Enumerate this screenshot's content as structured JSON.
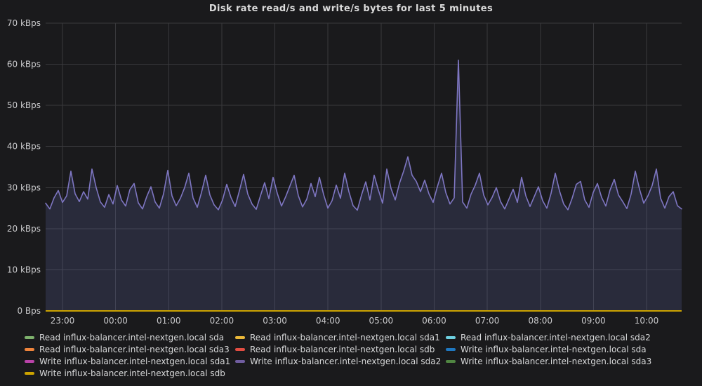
{
  "panel": {
    "title": "Disk rate read/s and write/s bytes for last 5 minutes"
  },
  "colors": {
    "background": "#1a1a1c",
    "grid": "#39393c",
    "tick_text": "#c9c9cb",
    "main_line": "#7e76c2",
    "main_fill": "rgba(105,115,185,0.20)",
    "zero_line": "#cca300"
  },
  "chart_data": {
    "type": "line",
    "title": "Disk rate read/s and write/s bytes for last 5 minutes",
    "xlabel": "",
    "ylabel": "",
    "ylim": [
      0,
      70
    ],
    "grid": true,
    "legend_position": "bottom",
    "y_tick_values": [
      0,
      10,
      20,
      30,
      40,
      50,
      60,
      70
    ],
    "y_tick_labels": [
      "0 Bps",
      "10 kBps",
      "20 kBps",
      "30 kBps",
      "40 kBps",
      "50 kBps",
      "60 kBps",
      "70 kBps"
    ],
    "x_ticks": [
      "23:00",
      "00:00",
      "01:00",
      "02:00",
      "03:00",
      "04:00",
      "05:00",
      "06:00",
      "07:00",
      "08:00",
      "09:00",
      "10:00"
    ],
    "series": [
      {
        "name": "Read influx-balancer.intel-nextgen.local sda",
        "color": "#7EB26D",
        "visible": false
      },
      {
        "name": "Read influx-balancer.intel-nextgen.local sda1",
        "color": "#EAB839",
        "visible": false
      },
      {
        "name": "Read influx-balancer.intel-nextgen.local sda2",
        "color": "#6ED0E0",
        "visible": false
      },
      {
        "name": "Read influx-balancer.intel-nextgen.local sda3",
        "color": "#EF843C",
        "visible": false
      },
      {
        "name": "Read influx-balancer.intel-nextgen.local sdb",
        "color": "#E24D42",
        "visible": false
      },
      {
        "name": "Write influx-balancer.intel-nextgen.local sda",
        "color": "#1F78C1",
        "visible": false
      },
      {
        "name": "Write influx-balancer.intel-nextgen.local sda1",
        "color": "#BA43A9",
        "visible": false
      },
      {
        "name": "Write influx-balancer.intel-nextgen.local sda2",
        "color": "#705DA0",
        "visible": true,
        "fill": true,
        "unit": "kBps",
        "values": [
          26.2,
          24.8,
          27.5,
          29.3,
          26.4,
          28.0,
          34.0,
          28.5,
          26.6,
          29.0,
          27.2,
          34.5,
          30.0,
          26.5,
          25.2,
          28.3,
          26.0,
          30.5,
          27.0,
          25.5,
          29.5,
          31.0,
          26.3,
          24.8,
          27.8,
          30.2,
          26.5,
          25.0,
          28.5,
          34.2,
          28.0,
          25.6,
          27.4,
          30.0,
          33.5,
          27.5,
          25.2,
          28.8,
          33.0,
          28.2,
          25.8,
          24.6,
          27.0,
          30.8,
          27.6,
          25.4,
          29.2,
          33.2,
          28.4,
          26.0,
          24.7,
          28.0,
          31.2,
          27.3,
          32.5,
          28.6,
          25.5,
          27.8,
          30.4,
          33.0,
          28.0,
          25.3,
          27.2,
          31.0,
          27.8,
          32.5,
          28.3,
          25.0,
          26.8,
          30.6,
          27.4,
          33.5,
          29.0,
          25.6,
          24.5,
          28.2,
          31.4,
          27.0,
          33.0,
          29.4,
          26.2,
          34.5,
          29.8,
          27.0,
          31.0,
          34.0,
          37.5,
          33.0,
          31.5,
          29.0,
          31.8,
          28.5,
          26.4,
          30.2,
          33.5,
          28.8,
          26.0,
          27.5,
          61.0,
          26.5,
          25.0,
          28.4,
          30.6,
          33.5,
          28.2,
          25.8,
          27.6,
          30.0,
          26.6,
          24.8,
          27.2,
          29.6,
          26.4,
          32.5,
          28.0,
          25.4,
          27.8,
          30.2,
          26.8,
          25.0,
          28.6,
          33.5,
          29.2,
          26.0,
          24.6,
          27.4,
          30.8,
          31.5,
          27.0,
          25.2,
          28.8,
          31.0,
          27.6,
          25.5,
          29.4,
          32.0,
          28.2,
          26.6,
          24.9,
          28.4,
          34.0,
          29.6,
          26.2,
          28.0,
          30.5,
          34.5,
          27.4,
          25.0,
          27.8,
          29.0,
          25.6,
          24.8
        ]
      },
      {
        "name": "Write influx-balancer.intel-nextgen.local sda3",
        "color": "#508642",
        "visible": false
      },
      {
        "name": "Write influx-balancer.intel-nextgen.local sdb",
        "color": "#CCA300",
        "visible": true,
        "constant": 0,
        "unit": "kBps"
      }
    ]
  }
}
